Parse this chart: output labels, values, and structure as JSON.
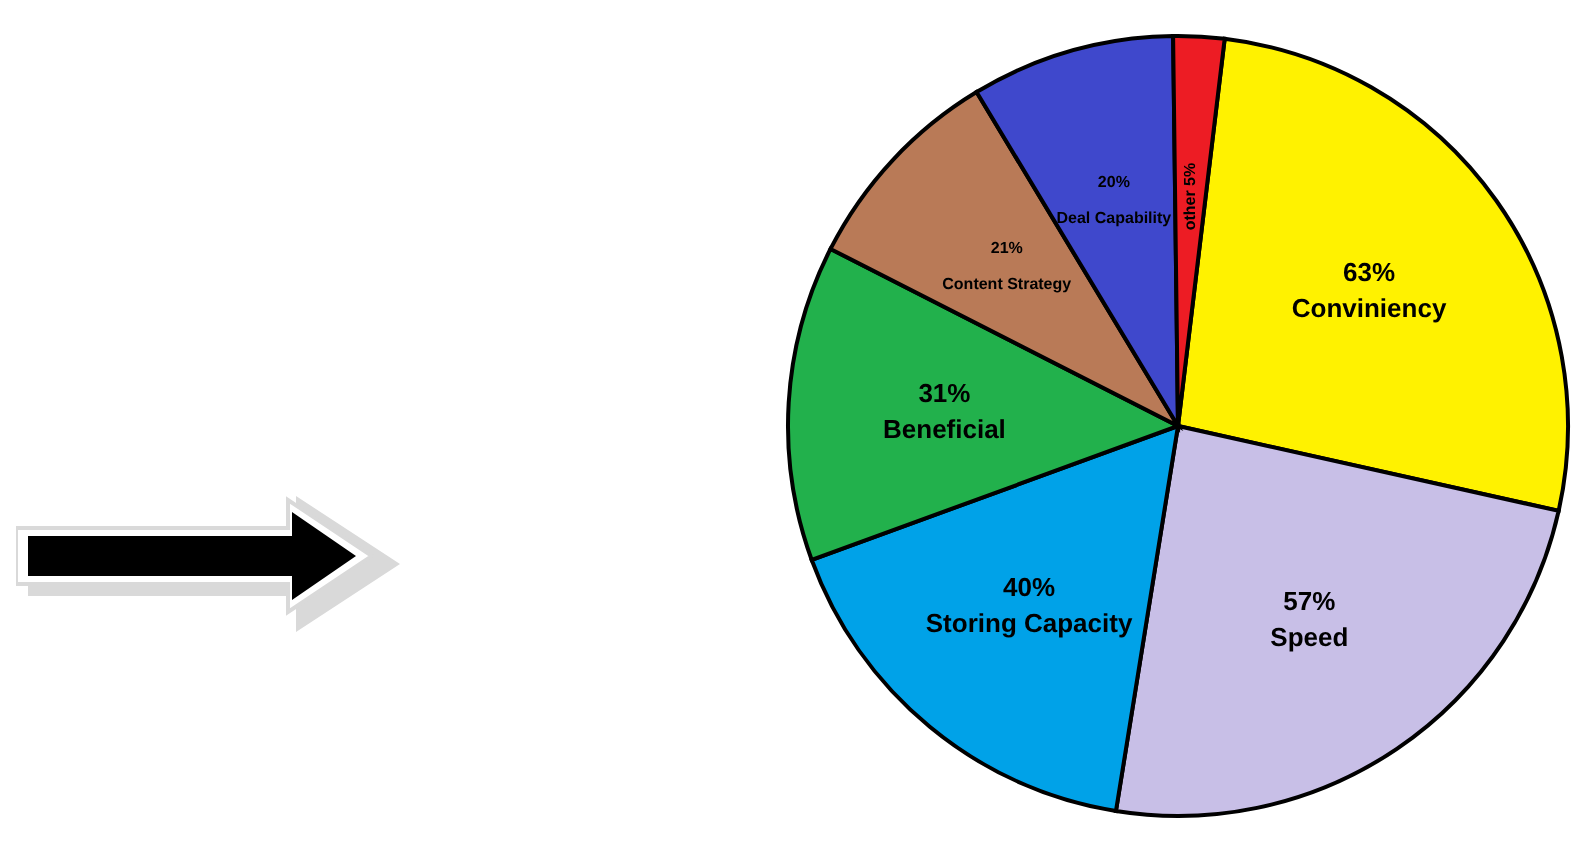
{
  "chart_data": {
    "type": "pie",
    "categories": [
      "Conviniency",
      "Speed",
      "Storing Capacity",
      "Beneficial",
      "Content Strategy",
      "Deal Capability",
      "other"
    ],
    "values": [
      63,
      57,
      40,
      31,
      21,
      20,
      5
    ],
    "value_labels": [
      "63%",
      "57%",
      "40%",
      "31%",
      "21%",
      "20%",
      "5%"
    ],
    "colors": [
      "#fff200",
      "#c8bfe7",
      "#00a2e8",
      "#22b14c",
      "#b97a57",
      "#3f48cc",
      "#ed1c24"
    ],
    "legend": false
  }
}
